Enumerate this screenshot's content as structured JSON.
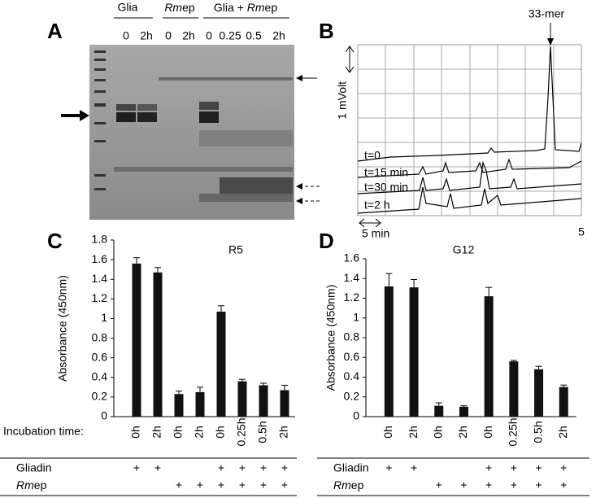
{
  "panel_labels": [
    "A",
    "B",
    "C",
    "D"
  ],
  "gel": {
    "group_1": "Glia",
    "group_2": {
      "italic": "Rm",
      "rest": "ep"
    },
    "group_3": {
      "lead": "Glia + ",
      "italic": "Rm",
      "rest": "ep"
    },
    "lanes": [
      "0",
      "2h",
      "0",
      "2h",
      "0",
      "0.25",
      "0.5",
      "2h"
    ]
  },
  "chromatogram": {
    "peak_label": "33-mer",
    "y_scale": "1 mVolt",
    "x_scale": "5 min",
    "x_end": "5",
    "traces": [
      "t=0",
      "t=15 min",
      "t=30 min",
      "t=2 h"
    ]
  },
  "chart_data": [
    {
      "type": "bar",
      "title": "R5",
      "y_label": "Absorbance (450nm)",
      "x_title": "Incubation time:",
      "categories": [
        "0h",
        "2h",
        "0h",
        "2h",
        "0h",
        "0.25h",
        "0.5h",
        "2h"
      ],
      "values": [
        1.56,
        1.47,
        0.23,
        0.25,
        1.07,
        0.36,
        0.32,
        0.27
      ],
      "errors": [
        0.06,
        0.05,
        0.03,
        0.05,
        0.06,
        0.02,
        0.02,
        0.05
      ],
      "color": "#111111",
      "ylim": [
        0,
        1.8
      ],
      "yticks": [
        0,
        0.2,
        0.4,
        0.6,
        0.8,
        1,
        1.2,
        1.4,
        1.6,
        1.8
      ],
      "treatments": [
        {
          "name": "Gliadin",
          "signs": [
            "+",
            "+",
            null,
            null,
            "+",
            "+",
            "+",
            "+"
          ]
        },
        {
          "name_italic": "Rm",
          "name_rest": "ep",
          "signs": [
            null,
            null,
            "+",
            "+",
            "+",
            "+",
            "+",
            "+"
          ]
        }
      ]
    },
    {
      "type": "bar",
      "title": "G12",
      "y_label": "Absorbance (450nm)",
      "categories": [
        "0h",
        "2h",
        "0h",
        "2h",
        "0h",
        "0.25h",
        "0.5h",
        "2h"
      ],
      "values": [
        1.32,
        1.31,
        0.11,
        0.1,
        1.22,
        0.56,
        0.48,
        0.3
      ],
      "errors": [
        0.13,
        0.08,
        0.03,
        0.01,
        0.09,
        0.01,
        0.03,
        0.02
      ],
      "color": "#111111",
      "ylim": [
        0,
        1.6
      ],
      "yticks": [
        0,
        0.2,
        0.4,
        0.6,
        0.8,
        1,
        1.2,
        1.4,
        1.6
      ],
      "treatments": [
        {
          "name": "Gliadin",
          "signs": [
            "+",
            "+",
            null,
            null,
            "+",
            "+",
            "+",
            "+"
          ]
        },
        {
          "name_italic": "Rm",
          "name_rest": "ep",
          "signs": [
            null,
            null,
            "+",
            "+",
            "+",
            "+",
            "+",
            "+"
          ]
        }
      ]
    }
  ]
}
